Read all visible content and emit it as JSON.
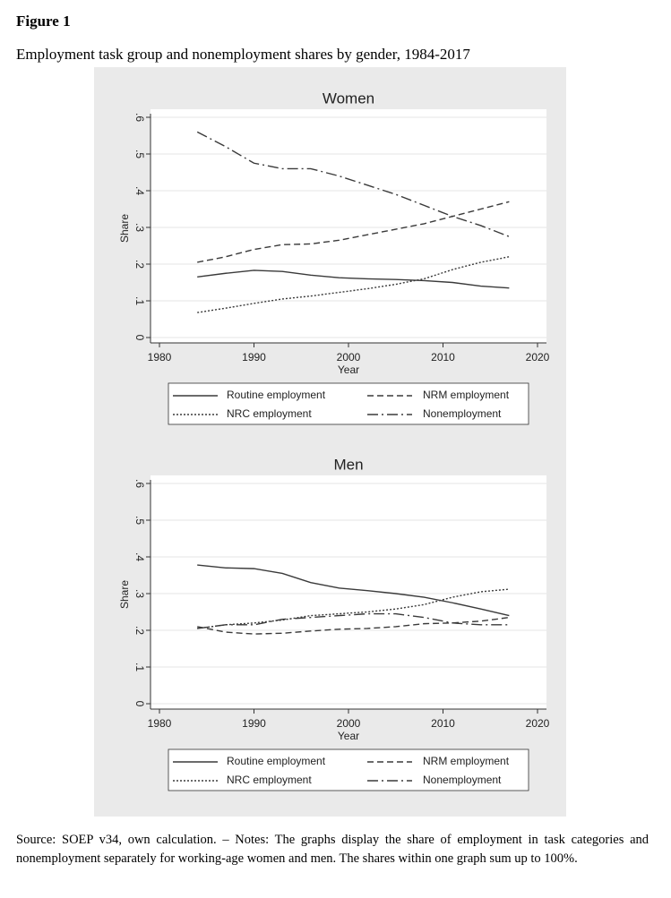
{
  "figure_label": "Figure 1",
  "caption": "Employment task group and nonemployment shares by gender, 1984-2017",
  "source_note": "Source: SOEP v34, own calculation. – Notes: The graphs display the share of employment in task categories and nonemployment separately for working-age women and men. The shares within one graph sum up to 100%.",
  "chart_data": [
    {
      "type": "line",
      "title": "Women",
      "x_label": "Year",
      "y_label": "Share",
      "xlim": [
        1980,
        2020
      ],
      "xticks": [
        1980,
        1990,
        2000,
        2010,
        2020
      ],
      "ylim": [
        0,
        0.6
      ],
      "yticks": [
        0,
        {
          "value": 0.1,
          "label": ".1"
        },
        {
          "value": 0.2,
          "label": ".2"
        },
        {
          "value": 0.3,
          "label": ".3"
        },
        {
          "value": 0.4,
          "label": ".4"
        },
        {
          "value": 0.5,
          "label": ".5"
        },
        {
          "value": 0.6,
          "label": ".6"
        }
      ],
      "grid": true,
      "x": [
        1984,
        1987,
        1990,
        1993,
        1996,
        1999,
        2002,
        2005,
        2008,
        2011,
        2014,
        2017
      ],
      "series": [
        {
          "name": "Routine employment",
          "color": "#3a3a3a",
          "dash": "solid",
          "values": [
            0.165,
            0.175,
            0.183,
            0.18,
            0.17,
            0.163,
            0.16,
            0.158,
            0.155,
            0.15,
            0.14,
            0.135
          ]
        },
        {
          "name": "NRM employment",
          "color": "#3a3a3a",
          "dash": "dashed",
          "values": [
            0.205,
            0.22,
            0.24,
            0.253,
            0.255,
            0.265,
            0.28,
            0.295,
            0.31,
            0.33,
            0.35,
            0.37
          ]
        },
        {
          "name": "NRC employment",
          "color": "#3a3a3a",
          "dash": "dotted",
          "values": [
            0.068,
            0.08,
            0.093,
            0.105,
            0.113,
            0.123,
            0.133,
            0.145,
            0.16,
            0.185,
            0.205,
            0.22
          ]
        },
        {
          "name": "Nonemployment",
          "color": "#3a3a3a",
          "dash": "dash-dot",
          "values": [
            0.56,
            0.52,
            0.475,
            0.46,
            0.46,
            0.44,
            0.415,
            0.39,
            0.36,
            0.33,
            0.305,
            0.275
          ]
        }
      ]
    },
    {
      "type": "line",
      "title": "Men",
      "x_label": "Year",
      "y_label": "Share",
      "xlim": [
        1980,
        2020
      ],
      "xticks": [
        1980,
        1990,
        2000,
        2010,
        2020
      ],
      "ylim": [
        0,
        0.6
      ],
      "yticks": [
        0,
        {
          "value": 0.1,
          "label": ".1"
        },
        {
          "value": 0.2,
          "label": ".2"
        },
        {
          "value": 0.3,
          "label": ".3"
        },
        {
          "value": 0.4,
          "label": ".4"
        },
        {
          "value": 0.5,
          "label": ".5"
        },
        {
          "value": 0.6,
          "label": ".6"
        }
      ],
      "grid": true,
      "x": [
        1984,
        1987,
        1990,
        1993,
        1996,
        1999,
        2002,
        2005,
        2008,
        2011,
        2014,
        2017
      ],
      "series": [
        {
          "name": "Routine employment",
          "color": "#3a3a3a",
          "dash": "solid",
          "values": [
            0.378,
            0.37,
            0.368,
            0.355,
            0.33,
            0.315,
            0.308,
            0.3,
            0.29,
            0.275,
            0.258,
            0.24
          ]
        },
        {
          "name": "NRM employment",
          "color": "#3a3a3a",
          "dash": "dashed",
          "values": [
            0.21,
            0.195,
            0.19,
            0.192,
            0.198,
            0.203,
            0.205,
            0.21,
            0.218,
            0.22,
            0.225,
            0.235
          ]
        },
        {
          "name": "NRC employment",
          "color": "#3a3a3a",
          "dash": "dotted",
          "values": [
            0.205,
            0.215,
            0.22,
            0.228,
            0.24,
            0.245,
            0.25,
            0.258,
            0.27,
            0.29,
            0.305,
            0.312
          ]
        },
        {
          "name": "Nonemployment",
          "color": "#3a3a3a",
          "dash": "dash-dot",
          "values": [
            0.205,
            0.215,
            0.215,
            0.23,
            0.235,
            0.24,
            0.245,
            0.245,
            0.235,
            0.22,
            0.215,
            0.215
          ]
        }
      ]
    }
  ]
}
